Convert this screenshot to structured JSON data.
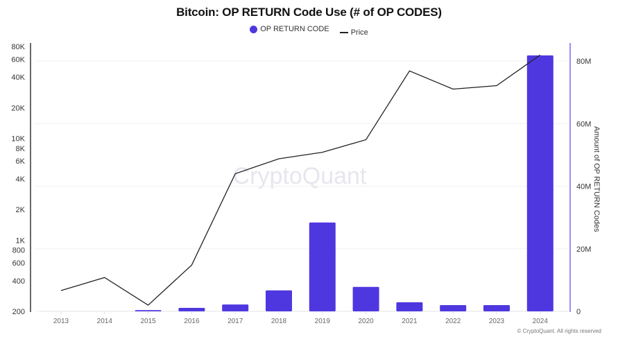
{
  "chart_data": {
    "type": "bar+line",
    "title": "Bitcoin: OP RETURN Code Use (# of OP CODES)",
    "legend": [
      {
        "name": "OP RETURN CODE",
        "type": "bar",
        "color": "#4f37e0"
      },
      {
        "name": "Price",
        "type": "line",
        "color": "#222222"
      }
    ],
    "categories": [
      "2013",
      "2014",
      "2015",
      "2016",
      "2017",
      "2018",
      "2019",
      "2020",
      "2021",
      "2022",
      "2023",
      "2024"
    ],
    "series": [
      {
        "name": "OP RETURN CODE",
        "axis": "right",
        "values": [
          0,
          0,
          400000,
          1100000,
          2200000,
          6700000,
          28400000,
          7800000,
          2900000,
          2000000,
          2000000,
          81800000
        ]
      },
      {
        "name": "Price",
        "axis": "left",
        "values": [
          320,
          430,
          230,
          570,
          4500,
          6300,
          7300,
          9700,
          46000,
          30500,
          33000,
          66000
        ]
      }
    ],
    "left_axis": {
      "scale": "log",
      "label": "",
      "ticks": [
        "80K",
        "60K",
        "40K",
        "20K",
        "10K",
        "8K",
        "6K",
        "4K",
        "2K",
        "1K",
        "800",
        "600",
        "400",
        "200"
      ],
      "range": [
        200,
        80000
      ]
    },
    "right_axis": {
      "scale": "linear",
      "label": "Amount of OP RETURN Codes",
      "ticks": [
        "80M",
        "60M",
        "40M",
        "20M",
        "0"
      ],
      "range": [
        0,
        84000000
      ]
    },
    "xlabel": "",
    "grid": true,
    "legend_position": "top"
  },
  "header": {
    "title": "Bitcoin: OP RETURN Code Use (# of OP CODES)",
    "legend_bar_label": "OP RETURN CODE",
    "legend_line_label": "Price"
  },
  "watermark": "CryptoQuant",
  "footer": {
    "copyright": "© CryptoQuant. All rights reserved"
  },
  "colors": {
    "bar": "#4f37e0",
    "line": "#222222",
    "right_axis": "#7a6af0",
    "grid": "#f0f0f0"
  }
}
